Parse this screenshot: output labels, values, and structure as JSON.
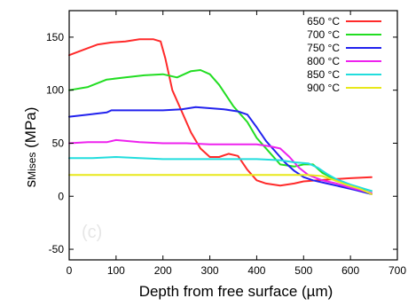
{
  "chart_data": {
    "type": "line",
    "xlabel": "Depth from free surface (µm)",
    "ylabel_main": "s",
    "ylabel_sub": "Mises",
    "ylabel_unit": " (MPa)",
    "xlim": [
      0,
      700
    ],
    "ylim": [
      -60,
      175
    ],
    "xticks": [
      0,
      100,
      200,
      300,
      400,
      500,
      600,
      700
    ],
    "yticks": [
      -50,
      0,
      50,
      100,
      150
    ],
    "grid": false,
    "legend_position": "top-right",
    "watermark": "(c)",
    "series": [
      {
        "name": "650 °C",
        "color": "#ff2a2a",
        "points": [
          [
            0,
            133
          ],
          [
            30,
            138
          ],
          [
            60,
            143
          ],
          [
            90,
            145
          ],
          [
            120,
            146
          ],
          [
            150,
            148
          ],
          [
            180,
            148
          ],
          [
            195,
            146
          ],
          [
            205,
            130
          ],
          [
            220,
            100
          ],
          [
            240,
            80
          ],
          [
            260,
            60
          ],
          [
            280,
            45
          ],
          [
            300,
            37
          ],
          [
            320,
            37
          ],
          [
            340,
            40
          ],
          [
            360,
            38
          ],
          [
            380,
            25
          ],
          [
            400,
            15
          ],
          [
            420,
            12
          ],
          [
            450,
            10
          ],
          [
            480,
            12
          ],
          [
            500,
            14
          ],
          [
            530,
            15
          ],
          [
            560,
            16
          ],
          [
            600,
            17
          ],
          [
            645,
            18
          ]
        ]
      },
      {
        "name": "700 °C",
        "color": "#22dd22",
        "points": [
          [
            0,
            100
          ],
          [
            40,
            103
          ],
          [
            80,
            110
          ],
          [
            120,
            112
          ],
          [
            160,
            114
          ],
          [
            200,
            115
          ],
          [
            230,
            112
          ],
          [
            260,
            118
          ],
          [
            280,
            119
          ],
          [
            300,
            115
          ],
          [
            320,
            105
          ],
          [
            350,
            85
          ],
          [
            380,
            70
          ],
          [
            400,
            55
          ],
          [
            420,
            45
          ],
          [
            450,
            30
          ],
          [
            480,
            28
          ],
          [
            500,
            30
          ],
          [
            520,
            30
          ],
          [
            540,
            22
          ],
          [
            570,
            15
          ],
          [
            600,
            10
          ],
          [
            645,
            5
          ]
        ]
      },
      {
        "name": "750 °C",
        "color": "#2222ee",
        "points": [
          [
            0,
            75
          ],
          [
            40,
            77
          ],
          [
            80,
            79
          ],
          [
            90,
            81
          ],
          [
            150,
            81
          ],
          [
            200,
            81
          ],
          [
            240,
            82
          ],
          [
            270,
            84
          ],
          [
            300,
            83
          ],
          [
            330,
            82
          ],
          [
            360,
            80
          ],
          [
            380,
            77
          ],
          [
            400,
            65
          ],
          [
            420,
            52
          ],
          [
            440,
            42
          ],
          [
            460,
            32
          ],
          [
            480,
            24
          ],
          [
            500,
            18
          ],
          [
            520,
            15
          ],
          [
            550,
            12
          ],
          [
            580,
            9
          ],
          [
            610,
            6
          ],
          [
            645,
            2
          ]
        ]
      },
      {
        "name": "800 °C",
        "color": "#ee22ee",
        "points": [
          [
            0,
            50
          ],
          [
            40,
            51
          ],
          [
            80,
            51
          ],
          [
            100,
            53
          ],
          [
            150,
            51
          ],
          [
            200,
            50
          ],
          [
            250,
            50
          ],
          [
            300,
            49
          ],
          [
            350,
            49
          ],
          [
            400,
            49
          ],
          [
            430,
            47
          ],
          [
            450,
            45
          ],
          [
            470,
            37
          ],
          [
            490,
            27
          ],
          [
            510,
            20
          ],
          [
            540,
            15
          ],
          [
            570,
            12
          ],
          [
            600,
            8
          ],
          [
            645,
            3
          ]
        ]
      },
      {
        "name": "850 °C",
        "color": "#22dddd",
        "points": [
          [
            0,
            36
          ],
          [
            50,
            36
          ],
          [
            100,
            37
          ],
          [
            150,
            36
          ],
          [
            200,
            35
          ],
          [
            250,
            35
          ],
          [
            300,
            35
          ],
          [
            350,
            35
          ],
          [
            400,
            35
          ],
          [
            450,
            34
          ],
          [
            480,
            32
          ],
          [
            510,
            31
          ],
          [
            530,
            27
          ],
          [
            550,
            21
          ],
          [
            570,
            16
          ],
          [
            600,
            11
          ],
          [
            645,
            5
          ]
        ]
      },
      {
        "name": "900 °C",
        "color": "#e8e81a",
        "points": [
          [
            0,
            20
          ],
          [
            100,
            20
          ],
          [
            200,
            20
          ],
          [
            300,
            20
          ],
          [
            400,
            20
          ],
          [
            450,
            20
          ],
          [
            480,
            20
          ],
          [
            510,
            20
          ],
          [
            540,
            19
          ],
          [
            560,
            16
          ],
          [
            590,
            11
          ],
          [
            620,
            7
          ],
          [
            645,
            2
          ]
        ]
      }
    ]
  }
}
